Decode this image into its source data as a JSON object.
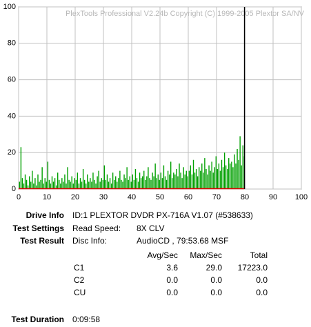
{
  "chart_data": {
    "type": "bar",
    "watermark": "PlexTools Professional V2.24b Copyright (C) 1999-2005 Plextor SA/NV",
    "color": "#00a000",
    "x": [
      0.5,
      1,
      1.5,
      2,
      2.5,
      3,
      3.5,
      4,
      4.5,
      5,
      5.5,
      6,
      6.5,
      7,
      7.5,
      8,
      8.5,
      9,
      9.5,
      10,
      10.5,
      11,
      11.5,
      12,
      12.5,
      13,
      13.5,
      14,
      14.5,
      15,
      15.5,
      16,
      16.5,
      17,
      17.5,
      18,
      18.5,
      19,
      19.5,
      20,
      20.5,
      21,
      21.5,
      22,
      22.5,
      23,
      23.5,
      24,
      24.5,
      25,
      25.5,
      26,
      26.5,
      27,
      27.5,
      28,
      28.5,
      29,
      29.5,
      30,
      30.5,
      31,
      31.5,
      32,
      32.5,
      33,
      33.5,
      34,
      34.5,
      35,
      35.5,
      36,
      36.5,
      37,
      37.5,
      38,
      38.5,
      39,
      39.5,
      40,
      40.5,
      41,
      41.5,
      42,
      42.5,
      43,
      43.5,
      44,
      44.5,
      45,
      45.5,
      46,
      46.5,
      47,
      47.5,
      48,
      48.5,
      49,
      49.5,
      50,
      50.5,
      51,
      51.5,
      52,
      52.5,
      53,
      53.5,
      54,
      54.5,
      55,
      55.5,
      56,
      56.5,
      57,
      57.5,
      58,
      58.5,
      59,
      59.5,
      60,
      60.5,
      61,
      61.5,
      62,
      62.5,
      63,
      63.5,
      64,
      64.5,
      65,
      65.5,
      66,
      66.5,
      67,
      67.5,
      68,
      68.5,
      69,
      69.5,
      70,
      70.5,
      71,
      71.5,
      72,
      72.5,
      73,
      73.5,
      74,
      74.5,
      75,
      75.5,
      76,
      76.5,
      77,
      77.5,
      78,
      78.5,
      79,
      79.5,
      80
    ],
    "values": [
      4,
      23,
      6,
      3,
      8,
      5,
      2,
      7,
      4,
      10,
      3,
      6,
      2,
      8,
      4,
      5,
      12,
      3,
      6,
      4,
      15,
      5,
      3,
      7,
      4,
      6,
      2,
      9,
      5,
      3,
      6,
      4,
      8,
      3,
      12,
      5,
      4,
      7,
      3,
      6,
      5,
      9,
      3,
      6,
      4,
      11,
      5,
      3,
      8,
      4,
      6,
      4,
      9,
      5,
      3,
      7,
      10,
      4,
      6,
      5,
      13,
      5,
      8,
      4,
      6,
      3,
      9,
      5,
      7,
      4,
      6,
      10,
      5,
      4,
      8,
      6,
      12,
      5,
      7,
      4,
      8,
      5,
      11,
      6,
      4,
      9,
      6,
      7,
      10,
      5,
      7,
      12,
      6,
      5,
      9,
      7,
      14,
      6,
      8,
      5,
      9,
      6,
      13,
      7,
      5,
      10,
      8,
      15,
      6,
      9,
      8,
      11,
      7,
      14,
      9,
      6,
      12,
      8,
      10,
      7,
      10,
      13,
      8,
      16,
      9,
      11,
      7,
      12,
      10,
      14,
      9,
      17,
      11,
      8,
      13,
      10,
      15,
      9,
      12,
      18,
      11,
      14,
      10,
      16,
      12,
      20,
      13,
      11,
      17,
      14,
      15,
      12,
      19,
      14,
      22,
      16,
      29,
      13,
      24,
      18
    ],
    "c2_line": {
      "color": "#e00000",
      "x": [
        0,
        79.9
      ],
      "values": [
        0,
        0
      ]
    },
    "end_marker": 79.9,
    "xlim": [
      0,
      100
    ],
    "xticks": [
      0,
      10,
      20,
      30,
      40,
      50,
      60,
      70,
      80,
      90,
      100
    ],
    "ylim": [
      0,
      100
    ],
    "yticks": [
      0,
      20,
      40,
      60,
      80,
      100
    ],
    "grid": true
  },
  "info": {
    "rows": [
      {
        "label": "Drive Info",
        "value": "ID:1 PLEXTOR DVDR PX-716A V1.07 (#538633)"
      },
      {
        "label": "Test Settings",
        "key": "Read Speed:",
        "value": "8X CLV"
      },
      {
        "label": "Test Result",
        "key": "Disc Info:",
        "value": "AudioCD , 79:53.68 MSF"
      }
    ]
  },
  "results": {
    "header": [
      "Avg/Sec",
      "Max/Sec",
      "Total"
    ],
    "rows": [
      [
        "C1",
        "3.6",
        "29.0",
        "17223.0"
      ],
      [
        "C2",
        "0.0",
        "0.0",
        "0.0"
      ],
      [
        "CU",
        "0.0",
        "0.0",
        "0.0"
      ]
    ]
  },
  "duration": {
    "label": "Test Duration",
    "value": "0:09:58"
  }
}
